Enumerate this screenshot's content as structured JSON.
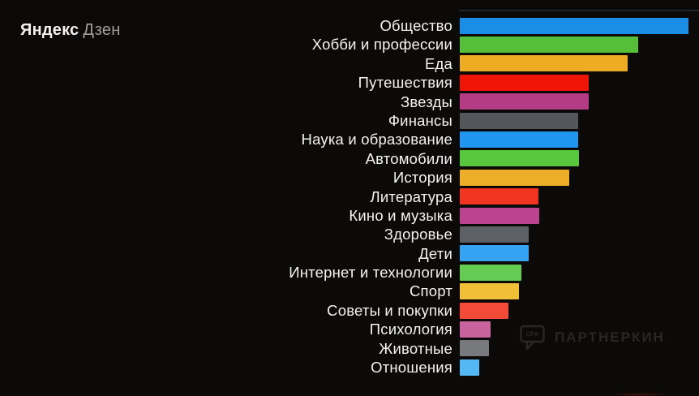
{
  "page": {
    "background_color": "#0b0a09"
  },
  "logo": {
    "brand": "Яндекс",
    "product": "Дзен"
  },
  "watermark": {
    "text": "ПАРТНЕРКИН",
    "icon_label": "CPA",
    "color": "#2b2626"
  },
  "chart_data": {
    "type": "bar",
    "orientation": "horizontal",
    "title": "",
    "xlabel": "",
    "ylabel": "",
    "axis": "none — no numeric axis, ticks or data labels shown",
    "grid": false,
    "legend": "none",
    "note": "values are relative bar lengths measured as % of the longest bar",
    "value_range": [
      0,
      100
    ],
    "categories": [
      "Общество",
      "Хобби и профессии",
      "Еда",
      "Путешествия",
      "Звезды",
      "Финансы",
      "Наука и образование",
      "Автомобили",
      "История",
      "Литература",
      "Кино и музыка",
      "Здоровье",
      "Дети",
      "Интернет и технологии",
      "Спорт",
      "Советы и покупки",
      "Психология",
      "Животные",
      "Отношения"
    ],
    "values": [
      100,
      78,
      73.4,
      56.4,
      56.4,
      51.8,
      51.8,
      52.1,
      47.9,
      34.4,
      34.8,
      30.1,
      30.1,
      27.0,
      25.9,
      21.3,
      13.5,
      12.8,
      8.5
    ],
    "colors": [
      "#1a8ee6",
      "#55bf3a",
      "#eeac24",
      "#ee1506",
      "#b43c84",
      "#53565a",
      "#2196f0",
      "#59c73d",
      "#eead27",
      "#f23520",
      "#bb4490",
      "#5d6064",
      "#36a3f2",
      "#64cc52",
      "#f2c037",
      "#f44b38",
      "#c9639e",
      "#77797d",
      "#54b8f5"
    ]
  }
}
